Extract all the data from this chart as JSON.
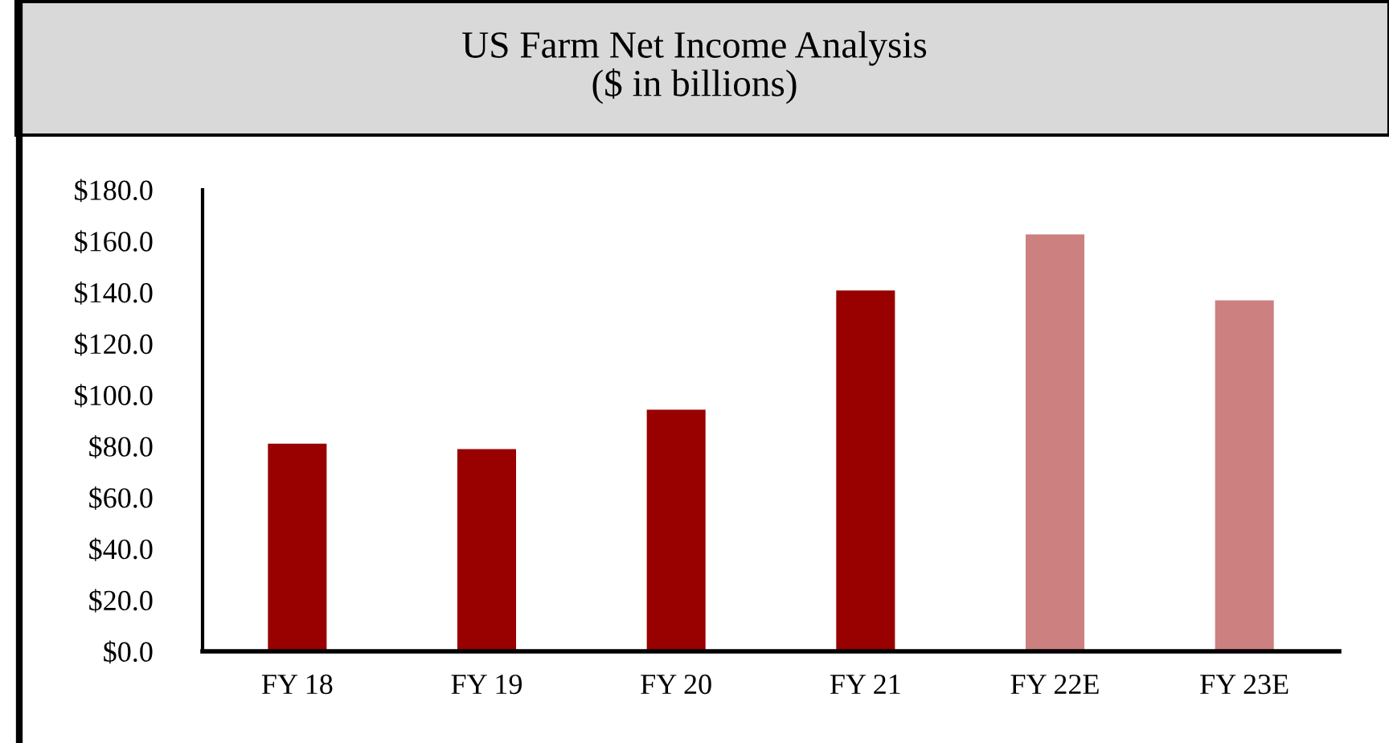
{
  "chart_data": {
    "type": "bar",
    "title": "US Farm Net Income Analysis\n($ in billions)",
    "categories": [
      "FY 18",
      "FY 19",
      "FY 20",
      "FY 21",
      "FY 22E",
      "FY 23E"
    ],
    "values": [
      81.0,
      78.9,
      94.2,
      140.7,
      162.6,
      136.9
    ],
    "colors": [
      "#990000",
      "#990000",
      "#990000",
      "#990000",
      "#cc8080",
      "#cc8080"
    ],
    "ylim": [
      0,
      180
    ],
    "yticks": [
      {
        "value": 0,
        "label": "$0.0"
      },
      {
        "value": 20,
        "label": "$20.0"
      },
      {
        "value": 40,
        "label": "$40.0"
      },
      {
        "value": 60,
        "label": "$60.0"
      },
      {
        "value": 80,
        "label": "$80.0"
      },
      {
        "value": 100,
        "label": "$100.0"
      },
      {
        "value": 120,
        "label": "$120.0"
      },
      {
        "value": 140,
        "label": "$140.0"
      },
      {
        "value": 160,
        "label": "$160.0"
      },
      {
        "value": 180,
        "label": "$180.0"
      }
    ],
    "grid": false
  }
}
